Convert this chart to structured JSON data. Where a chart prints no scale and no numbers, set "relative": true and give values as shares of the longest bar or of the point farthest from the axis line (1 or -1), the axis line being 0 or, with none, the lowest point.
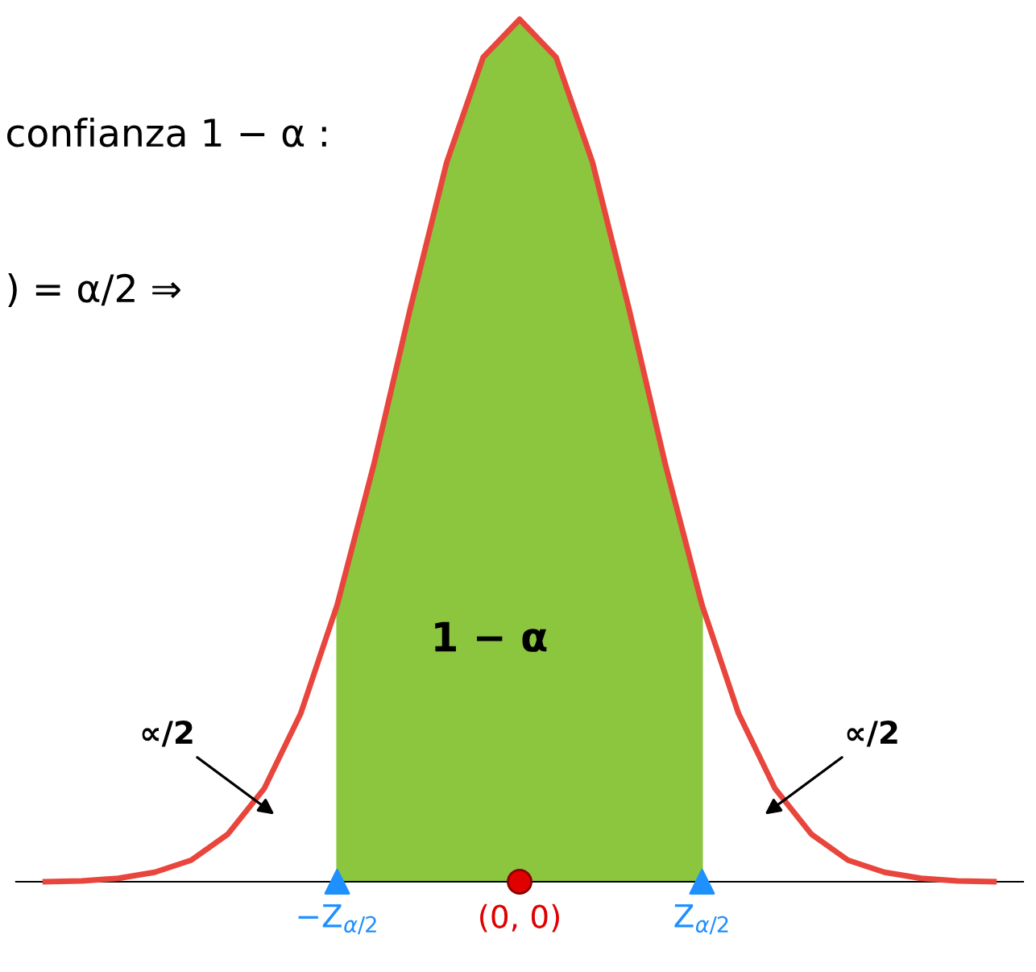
{
  "chart_data": {
    "type": "line",
    "relative": true,
    "categories": [
      null,
      null,
      null,
      null,
      null,
      null,
      null,
      null,
      "−Z$_{α/2}$",
      null,
      null,
      null,
      null,
      "(0, 0)",
      null,
      null,
      null,
      null,
      "Z$_{α/2}$",
      null,
      null,
      null,
      null,
      null,
      null,
      null,
      null
    ],
    "series": [
      {
        "color": "#e8453c",
        "values": [
          0,
          0.001,
          0.004,
          0.011,
          0.025,
          0.055,
          0.108,
          0.195,
          0.321,
          0.483,
          0.664,
          0.834,
          0.956,
          1,
          0.956,
          0.834,
          0.664,
          0.483,
          0.321,
          0.195,
          0.108,
          0.055,
          0.025,
          0.011,
          0.004,
          0.001,
          0
        ]
      },
      {
        "type": "area",
        "color": "#8cc63f",
        "values": [
          null,
          null,
          null,
          null,
          null,
          null,
          null,
          null,
          0.321,
          0.483,
          0.664,
          0.834,
          0.956,
          1,
          0.956,
          0.834,
          0.664,
          0.483,
          0.321,
          null,
          null,
          null,
          null,
          null,
          null,
          null,
          null
        ]
      },
      {
        "type": "scatter",
        "color": "#1e90ff",
        "marker": "triangle",
        "values": [
          null,
          null,
          null,
          null,
          null,
          null,
          null,
          null,
          0,
          null,
          null,
          null,
          null,
          null,
          null,
          null,
          null,
          null,
          0,
          null,
          null,
          null,
          null,
          null,
          null,
          null,
          null
        ]
      },
      {
        "type": "scatter",
        "color": "#e00000",
        "marker": "circle",
        "values": [
          null,
          null,
          null,
          null,
          null,
          null,
          null,
          null,
          null,
          null,
          null,
          null,
          null,
          0,
          null,
          null,
          null,
          null,
          null,
          null,
          null,
          null,
          null,
          null,
          null,
          null,
          null
        ]
      }
    ],
    "annotations": [
      "confianza 1 − α :",
      ") = α/2 ⇒",
      "1 − α",
      "∝/2",
      "∝/2"
    ]
  }
}
